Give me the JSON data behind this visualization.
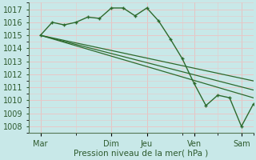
{
  "bg_color": "#c8e8e8",
  "grid_major_color": "#e8c8c8",
  "grid_minor_color": "#e0e0e0",
  "line_color": "#2d6a2d",
  "xlabel": "Pression niveau de la mer( hPa )",
  "ylim": [
    1007.5,
    1017.5
  ],
  "yticks": [
    1008,
    1009,
    1010,
    1011,
    1012,
    1013,
    1014,
    1015,
    1016,
    1017
  ],
  "xlim": [
    0,
    19
  ],
  "x_tick_pos": [
    1,
    7,
    10,
    14,
    18
  ],
  "x_tick_labels": [
    "Mar",
    "Dim",
    "Jeu",
    "Ven",
    "Sam"
  ],
  "main_line": {
    "x": [
      1,
      2,
      3,
      4,
      5,
      6,
      7,
      8,
      9,
      10,
      11,
      12,
      13,
      14,
      15,
      16,
      17,
      18,
      19
    ],
    "y": [
      1015.0,
      1016.0,
      1015.8,
      1016.0,
      1016.4,
      1016.3,
      1017.1,
      1017.1,
      1016.5,
      1017.1,
      1016.1,
      1014.7,
      1013.2,
      1011.3,
      1009.6,
      1010.4,
      1010.2,
      1008.0,
      1009.7
    ]
  },
  "ensemble_lines": [
    {
      "x": [
        1,
        19
      ],
      "y": [
        1015.0,
        1011.5
      ]
    },
    {
      "x": [
        1,
        19
      ],
      "y": [
        1015.0,
        1010.8
      ]
    },
    {
      "x": [
        1,
        19
      ],
      "y": [
        1015.0,
        1010.2
      ]
    }
  ],
  "vline_pos": [
    1,
    7,
    10,
    14,
    18
  ]
}
